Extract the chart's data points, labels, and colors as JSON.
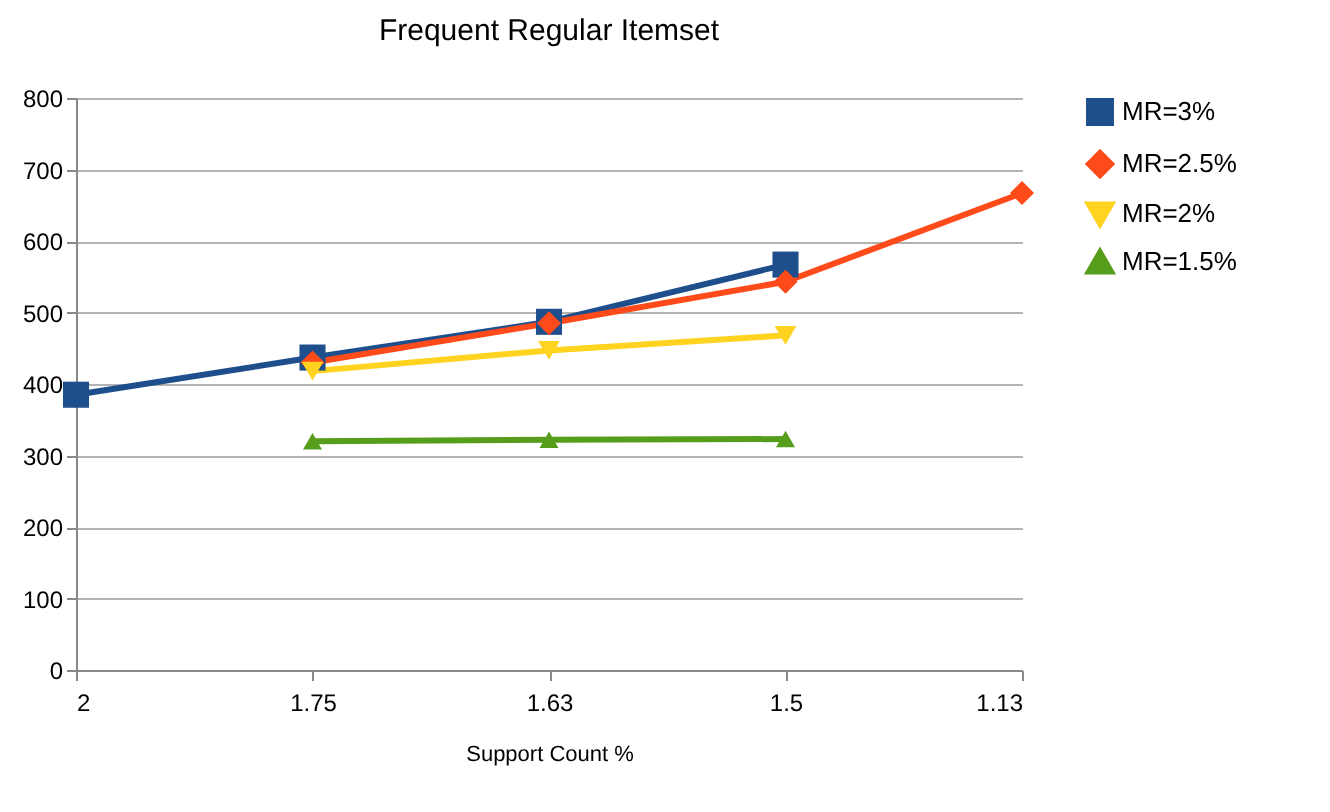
{
  "chart_data": {
    "type": "line",
    "title": "Frequent Regular Itemset",
    "xlabel": "Support Count %",
    "categories": [
      "2",
      "1.75",
      "1.63",
      "1.5",
      "1.13"
    ],
    "series": [
      {
        "name": "MR=3%",
        "color": "#1f4e8c",
        "marker": "square",
        "values": [
          385,
          437,
          487,
          567,
          null
        ]
      },
      {
        "name": "MR=2.5%",
        "color": "#ff4b1a",
        "marker": "diamond",
        "values": [
          null,
          430,
          485,
          543,
          667
        ]
      },
      {
        "name": "MR=2%",
        "color": "#ffd320",
        "marker": "triangle-down",
        "values": [
          null,
          418,
          447,
          468,
          null
        ]
      },
      {
        "name": "MR=1.5%",
        "color": "#579d1c",
        "marker": "triangle",
        "values": [
          null,
          320,
          322,
          323,
          null
        ]
      }
    ],
    "ylim": [
      0,
      800
    ],
    "yticks": [
      0,
      100,
      200,
      300,
      400,
      500,
      600,
      700,
      800
    ],
    "grid": "y",
    "legend": "right",
    "line_style": "solid"
  }
}
